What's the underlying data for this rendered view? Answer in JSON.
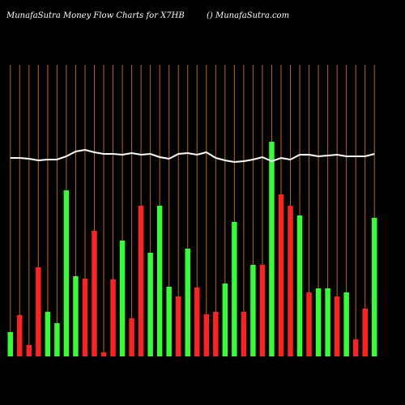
{
  "chart_data": {
    "type": "bar",
    "title": "MunafaSutra  Money Flow  Charts for X7HB",
    "subtitle": "() MunafaSutra.com",
    "categories": [
      null,
      null,
      null,
      null,
      null,
      null,
      null,
      null,
      null,
      null,
      null,
      null,
      null,
      null,
      null,
      null,
      null,
      null,
      null,
      null,
      null,
      null,
      null,
      null,
      null,
      null,
      null,
      null,
      null,
      null,
      null,
      null,
      null,
      null,
      null,
      null,
      null,
      null,
      null,
      null
    ],
    "values": [
      30,
      51,
      14,
      110,
      55,
      41,
      205,
      99,
      96,
      155,
      5,
      95,
      143,
      47,
      186,
      128,
      186,
      86,
      74,
      133,
      85,
      52,
      55,
      90,
      166,
      55,
      113,
      113,
      265,
      200,
      186,
      174,
      79,
      84,
      84,
      74,
      79,
      21,
      59,
      171
    ],
    "colors": [
      "#33ff33",
      "#ff2222",
      "#ff2222",
      "#ff2222",
      "#33ff33",
      "#33ff33",
      "#33ff33",
      "#33ff33",
      "#ff2222",
      "#ff2222",
      "#ff2222",
      "#ff2222",
      "#33ff33",
      "#ff2222",
      "#ff2222",
      "#33ff33",
      "#33ff33",
      "#33ff33",
      "#ff2222",
      "#33ff33",
      "#ff2222",
      "#ff2222",
      "#ff2222",
      "#33ff33",
      "#33ff33",
      "#ff2222",
      "#33ff33",
      "#ff2222",
      "#33ff33",
      "#ff2222",
      "#ff2222",
      "#33ff33",
      "#ff2222",
      "#33ff33",
      "#33ff33",
      "#ff2222",
      "#33ff33",
      "#ff2222",
      "#ff2222",
      "#33ff33"
    ],
    "line": {
      "color": "#ffffff",
      "values": [
        245,
        245,
        244,
        242,
        243,
        243,
        247,
        253,
        255,
        252,
        250,
        250,
        249,
        251,
        249,
        250,
        246,
        244,
        250,
        251,
        249,
        252,
        245,
        242,
        240,
        241,
        243,
        246,
        241,
        245,
        243,
        249,
        249,
        247,
        248,
        249,
        247,
        247,
        247,
        250
      ]
    },
    "grid_color": "#b86a00",
    "ylim": [
      0,
      360
    ]
  }
}
